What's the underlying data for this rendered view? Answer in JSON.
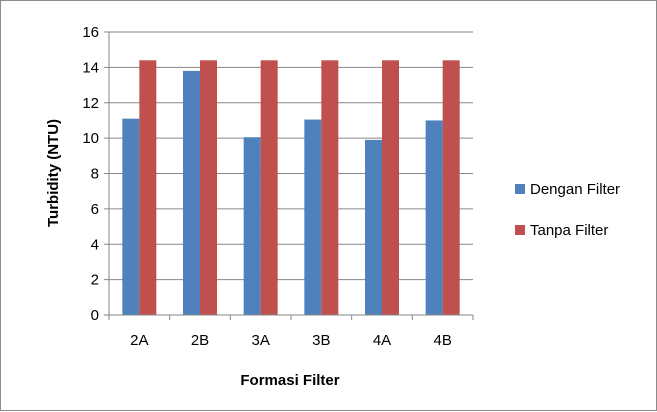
{
  "chart_data": {
    "type": "bar",
    "categories": [
      "2A",
      "2B",
      "3A",
      "3B",
      "4A",
      "4B"
    ],
    "series": [
      {
        "name": "Dengan Filter",
        "values": [
          11.1,
          13.8,
          10.05,
          11.05,
          9.9,
          11.0
        ],
        "color": "#4F81BD"
      },
      {
        "name": "Tanpa Filter",
        "values": [
          14.4,
          14.4,
          14.4,
          14.4,
          14.4,
          14.4
        ],
        "color": "#C0504D"
      }
    ],
    "xlabel": "Formasi Filter",
    "ylabel": "Turbidity (NTU)",
    "ylim": [
      0,
      16
    ],
    "yticks": [
      0,
      2,
      4,
      6,
      8,
      10,
      12,
      14,
      16
    ],
    "grid": true,
    "legend": "right"
  }
}
